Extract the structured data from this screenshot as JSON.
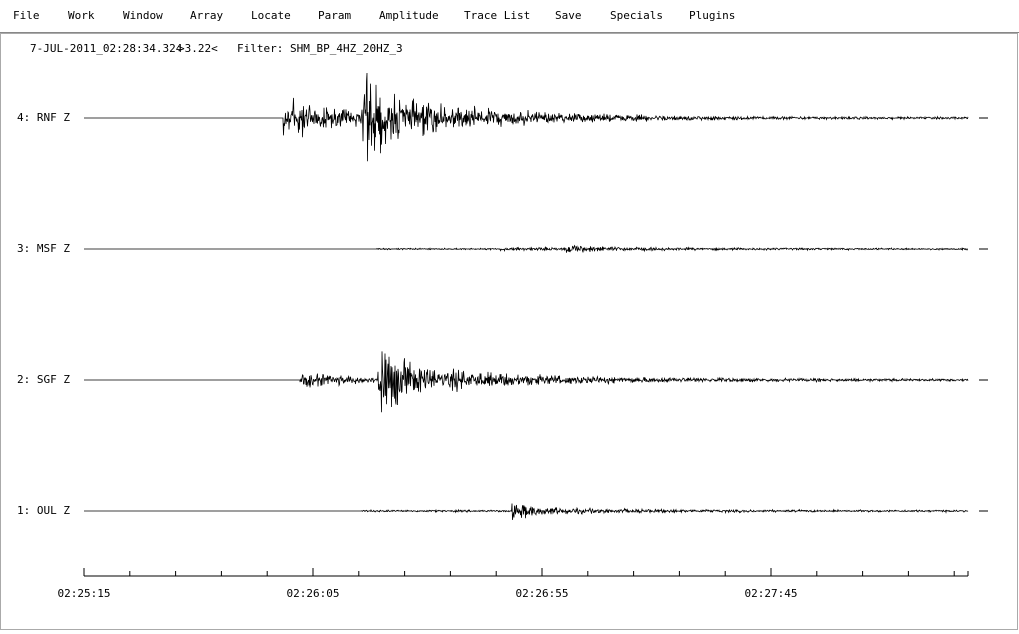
{
  "menu": {
    "items": [
      "File",
      "Work",
      "Window",
      "Array",
      "Locate",
      "Param",
      "Amplitude",
      "Trace List",
      "Save",
      "Specials",
      "Plugins"
    ]
  },
  "header": {
    "datetime": "7-JUL-2011_02:28:34.324",
    "amplitude": ">3.22<",
    "filter": "Filter: SHM_BP_4HZ_20HZ_3"
  },
  "traces": [
    {
      "label": "4: RNF Z"
    },
    {
      "label": "3: MSF Z"
    },
    {
      "label": "2: SGF Z"
    },
    {
      "label": "1: OUL Z"
    }
  ],
  "time_axis": {
    "labels": [
      "02:25:15",
      "02:26:05",
      "02:26:55",
      "02:27:45"
    ]
  }
}
